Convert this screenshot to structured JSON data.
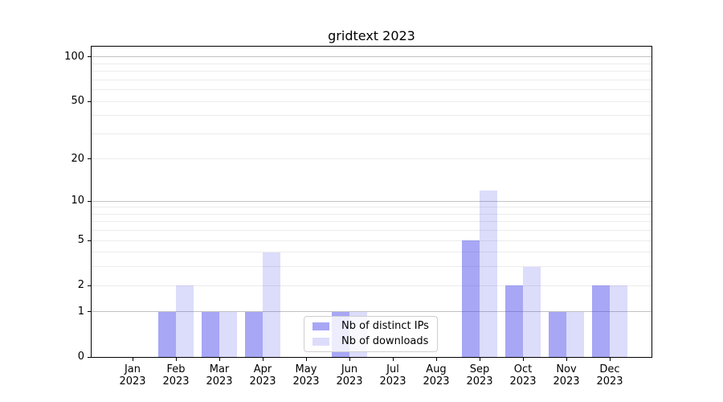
{
  "chart_data": {
    "type": "bar",
    "title": "gridtext 2023",
    "year_label": "2023",
    "months": [
      "Jan",
      "Feb",
      "Mar",
      "Apr",
      "May",
      "Jun",
      "Jul",
      "Aug",
      "Sep",
      "Oct",
      "Nov",
      "Dec"
    ],
    "series": [
      {
        "name": "Nb of distinct IPs",
        "color_hex": "#a5a5f2",
        "color_rgba": "rgba(59,59,232,0.45)",
        "values": [
          0,
          1,
          1,
          1,
          0,
          1,
          0,
          0,
          5,
          2,
          1,
          2
        ]
      },
      {
        "name": "Nb of downloads",
        "color_hex": "#dcdcfa",
        "color_rgba": "rgba(59,59,232,0.18)",
        "values": [
          0,
          2,
          1,
          4,
          0,
          1,
          0,
          0,
          12,
          3,
          1,
          2
        ]
      }
    ],
    "xlabel": "",
    "ylabel": "",
    "y_scale": "log1p",
    "y_ticks": [
      0,
      1,
      2,
      5,
      10,
      20,
      50,
      100
    ],
    "ylim": [
      0,
      117.5
    ],
    "grid": {
      "major_lines": [
        1,
        10,
        100
      ],
      "minor_lines": [
        2,
        3,
        4,
        5,
        6,
        7,
        8,
        9,
        20,
        30,
        40,
        50,
        60,
        70,
        80,
        90
      ],
      "major_color": "#c2c2c2",
      "minor_color": "#ececec"
    },
    "legend": {
      "position": "lower-center",
      "entries": [
        "Nb of distinct IPs",
        "Nb of downloads"
      ]
    },
    "axis_color": "#000000",
    "background_color": "#ffffff"
  }
}
